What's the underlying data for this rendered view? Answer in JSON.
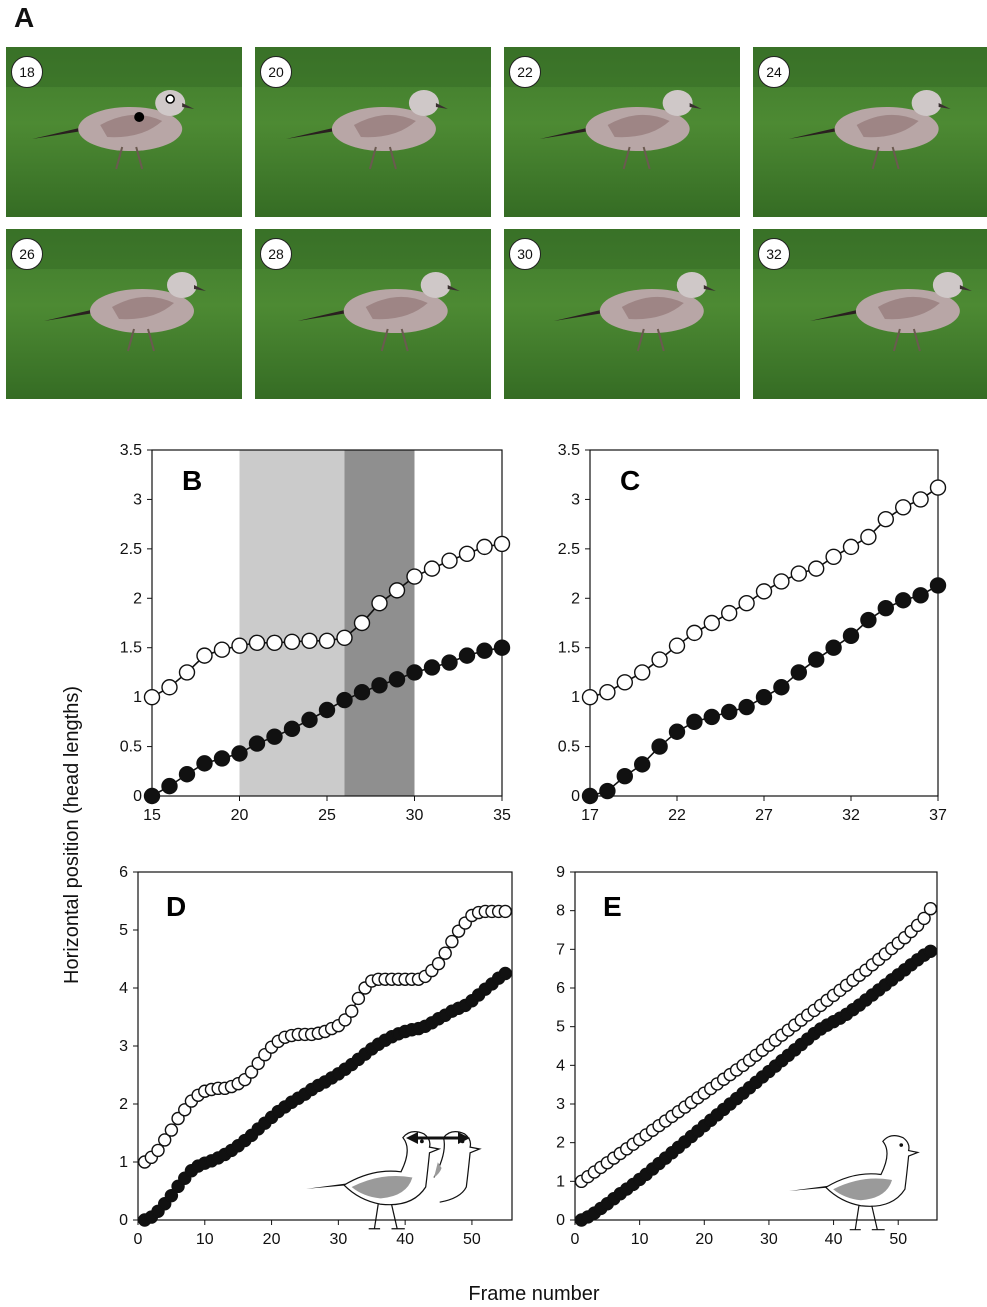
{
  "figure": {
    "panel_a_label": "A",
    "ylabel": "Horizontal position (head lengths)",
    "xlabel": "Frame number"
  },
  "photos": [
    {
      "frame": "18",
      "bird_x": 0.45,
      "marked": true
    },
    {
      "frame": "20",
      "bird_x": 0.47
    },
    {
      "frame": "22",
      "bird_x": 0.49
    },
    {
      "frame": "24",
      "bird_x": 0.49
    },
    {
      "frame": "26",
      "bird_x": 0.5
    },
    {
      "frame": "28",
      "bird_x": 0.52
    },
    {
      "frame": "30",
      "bird_x": 0.55
    },
    {
      "frame": "32",
      "bird_x": 0.58
    }
  ],
  "chart_data": [
    {
      "panel": "B",
      "type": "line",
      "xlim": [
        15,
        35
      ],
      "ylim": [
        0,
        3.5
      ],
      "xticks": [
        "15",
        "20",
        "25",
        "30",
        "35"
      ],
      "yticks": [
        "0",
        "0.5",
        "1",
        "1.5",
        "2",
        "2.5",
        "3",
        "3.5"
      ],
      "shaded_regions": [
        {
          "x": [
            20,
            26
          ],
          "color": "#cbcbcb"
        },
        {
          "x": [
            26,
            30
          ],
          "color": "#8f8f8f"
        }
      ],
      "series": [
        {
          "marker": "open",
          "x": [
            15,
            16,
            17,
            18,
            19,
            20,
            21,
            22,
            23,
            24,
            25,
            26,
            27,
            28,
            29,
            30,
            31,
            32,
            33,
            34,
            35
          ],
          "y": [
            1.0,
            1.1,
            1.25,
            1.42,
            1.48,
            1.52,
            1.55,
            1.55,
            1.56,
            1.57,
            1.57,
            1.6,
            1.75,
            1.95,
            2.08,
            2.22,
            2.3,
            2.38,
            2.45,
            2.52,
            2.55
          ]
        },
        {
          "marker": "filled",
          "x": [
            15,
            16,
            17,
            18,
            19,
            20,
            21,
            22,
            23,
            24,
            25,
            26,
            27,
            28,
            29,
            30,
            31,
            32,
            33,
            34,
            35
          ],
          "y": [
            0.0,
            0.1,
            0.22,
            0.33,
            0.38,
            0.43,
            0.53,
            0.6,
            0.68,
            0.77,
            0.87,
            0.97,
            1.05,
            1.12,
            1.18,
            1.25,
            1.3,
            1.35,
            1.42,
            1.47,
            1.5
          ]
        }
      ]
    },
    {
      "panel": "C",
      "type": "line",
      "xlim": [
        17,
        37
      ],
      "ylim": [
        0,
        3.5
      ],
      "xticks": [
        "17",
        "22",
        "27",
        "32",
        "37"
      ],
      "yticks": [
        "0",
        "0.5",
        "1",
        "1.5",
        "2",
        "2.5",
        "3",
        "3.5"
      ],
      "series": [
        {
          "marker": "open",
          "x": [
            17,
            18,
            19,
            20,
            21,
            22,
            23,
            24,
            25,
            26,
            27,
            28,
            29,
            30,
            31,
            32,
            33,
            34,
            35,
            36,
            37
          ],
          "y": [
            1.0,
            1.05,
            1.15,
            1.25,
            1.38,
            1.52,
            1.65,
            1.75,
            1.85,
            1.95,
            2.07,
            2.17,
            2.25,
            2.3,
            2.42,
            2.52,
            2.62,
            2.8,
            2.92,
            3.0,
            3.12
          ]
        },
        {
          "marker": "filled",
          "x": [
            17,
            18,
            19,
            20,
            21,
            22,
            23,
            24,
            25,
            26,
            27,
            28,
            29,
            30,
            31,
            32,
            33,
            34,
            35,
            36,
            37
          ],
          "y": [
            0.0,
            0.05,
            0.2,
            0.32,
            0.5,
            0.65,
            0.75,
            0.8,
            0.85,
            0.9,
            1.0,
            1.1,
            1.25,
            1.38,
            1.5,
            1.62,
            1.78,
            1.9,
            1.98,
            2.03,
            2.13
          ]
        }
      ]
    },
    {
      "panel": "D",
      "type": "line",
      "xlim": [
        0,
        56
      ],
      "ylim": [
        0,
        6
      ],
      "xticks": [
        "0",
        "10",
        "20",
        "30",
        "40",
        "50"
      ],
      "yticks": [
        "0",
        "1",
        "2",
        "3",
        "4",
        "5",
        "6"
      ],
      "inset": "two-gulls-with-arrow",
      "series": [
        {
          "marker": "open",
          "x_start": 1,
          "x_step": 1,
          "y": [
            1.0,
            1.08,
            1.2,
            1.38,
            1.55,
            1.75,
            1.9,
            2.05,
            2.15,
            2.22,
            2.25,
            2.27,
            2.27,
            2.3,
            2.35,
            2.42,
            2.55,
            2.7,
            2.85,
            2.98,
            3.08,
            3.15,
            3.18,
            3.2,
            3.2,
            3.2,
            3.22,
            3.25,
            3.3,
            3.35,
            3.45,
            3.6,
            3.82,
            4.0,
            4.12,
            4.15,
            4.15,
            4.15,
            4.15,
            4.15,
            4.15,
            4.15,
            4.2,
            4.3,
            4.42,
            4.6,
            4.8,
            4.98,
            5.12,
            5.25,
            5.3,
            5.32,
            5.32,
            5.32,
            5.32
          ]
        },
        {
          "marker": "filled",
          "x_start": 1,
          "x_step": 1,
          "y": [
            0.0,
            0.05,
            0.15,
            0.28,
            0.42,
            0.58,
            0.72,
            0.85,
            0.93,
            0.98,
            1.02,
            1.07,
            1.13,
            1.2,
            1.28,
            1.37,
            1.46,
            1.57,
            1.67,
            1.77,
            1.87,
            1.95,
            2.03,
            2.1,
            2.17,
            2.25,
            2.32,
            2.38,
            2.45,
            2.52,
            2.6,
            2.68,
            2.77,
            2.86,
            2.95,
            3.03,
            3.1,
            3.16,
            3.21,
            3.25,
            3.28,
            3.3,
            3.34,
            3.4,
            3.47,
            3.53,
            3.6,
            3.65,
            3.7,
            3.78,
            3.88,
            3.98,
            4.07,
            4.17,
            4.25
          ]
        }
      ]
    },
    {
      "panel": "E",
      "type": "line",
      "xlim": [
        0,
        56
      ],
      "ylim": [
        0,
        9
      ],
      "xticks": [
        "0",
        "10",
        "20",
        "30",
        "40",
        "50"
      ],
      "yticks": [
        "0",
        "1",
        "2",
        "3",
        "4",
        "5",
        "6",
        "7",
        "8",
        "9"
      ],
      "inset": "one-gull",
      "series": [
        {
          "marker": "open",
          "x_start": 1,
          "x_step": 1,
          "y": [
            1.0,
            1.12,
            1.24,
            1.36,
            1.48,
            1.6,
            1.72,
            1.84,
            1.96,
            2.08,
            2.2,
            2.32,
            2.44,
            2.56,
            2.68,
            2.8,
            2.92,
            3.04,
            3.16,
            3.28,
            3.4,
            3.52,
            3.64,
            3.76,
            3.88,
            4.0,
            4.13,
            4.26,
            4.39,
            4.52,
            4.65,
            4.78,
            4.91,
            5.04,
            5.17,
            5.3,
            5.42,
            5.55,
            5.68,
            5.81,
            5.94,
            6.07,
            6.2,
            6.33,
            6.46,
            6.6,
            6.74,
            6.88,
            7.02,
            7.16,
            7.3,
            7.46,
            7.62,
            7.8,
            8.05
          ]
        },
        {
          "marker": "filled",
          "x_start": 1,
          "x_step": 1,
          "y": [
            0.0,
            0.08,
            0.18,
            0.3,
            0.42,
            0.55,
            0.68,
            0.8,
            0.92,
            1.05,
            1.18,
            1.32,
            1.46,
            1.6,
            1.74,
            1.88,
            2.02,
            2.16,
            2.3,
            2.44,
            2.58,
            2.72,
            2.86,
            3.0,
            3.14,
            3.28,
            3.42,
            3.56,
            3.7,
            3.84,
            3.98,
            4.12,
            4.26,
            4.4,
            4.54,
            4.68,
            4.82,
            4.94,
            5.04,
            5.13,
            5.22,
            5.32,
            5.44,
            5.56,
            5.69,
            5.82,
            5.95,
            6.08,
            6.21,
            6.34,
            6.47,
            6.6,
            6.73,
            6.85,
            6.95
          ]
        }
      ]
    }
  ]
}
